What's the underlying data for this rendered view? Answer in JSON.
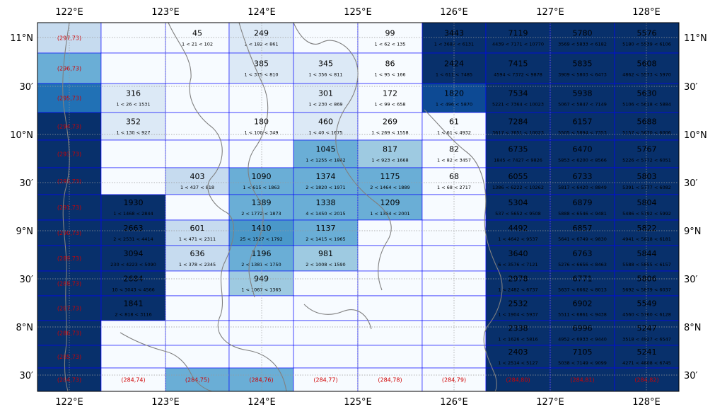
{
  "map": {
    "lon_ticks": [
      "122°E",
      "123°E",
      "124°E",
      "125°E",
      "126°E",
      "127°E",
      "128°E"
    ],
    "lat_ticks": [
      "11°N",
      "30′",
      "10°N",
      "30′",
      "9°N",
      "30′",
      "8°N",
      "30′"
    ],
    "colors": {
      "very_light": "#f7fbff",
      "light": "#dce9f6",
      "light_mid": "#c6dbef",
      "mid_light": "#9ecae1",
      "mid": "#6aaed6",
      "mid_dark": "#4a98c9",
      "dark": "#2171b5",
      "very_dark": "#08306b",
      "navy_mid": "#0d4a94",
      "grid_line": "#0000ff",
      "coast": "#808080",
      "label_red": "#d00000"
    },
    "cols": [
      "122-122.33",
      "122.33-122.67",
      "122.67-123",
      "123-123.33",
      "123.33-123.67",
      "123.67-124",
      "124-124.33",
      "124.33-124.67",
      "124.67-125",
      "125-125.33"
    ],
    "cells": [
      {
        "row": 0,
        "col": 0,
        "shade": "light_mid",
        "label": "(297,73)"
      },
      {
        "row": 0,
        "col": 1,
        "shade": "very_light"
      },
      {
        "row": 0,
        "col": 2,
        "shade": "very_light",
        "value": "45",
        "range": "1 < 21 < 102"
      },
      {
        "row": 0,
        "col": 3,
        "shade": "light",
        "value": "249",
        "range": "1 < 182 < 861"
      },
      {
        "row": 0,
        "col": 4,
        "shade": "very_light"
      },
      {
        "row": 0,
        "col": 5,
        "shade": "very_light",
        "value": "99",
        "range": "1 < 62 < 135"
      },
      {
        "row": 0,
        "col": 6,
        "shade": "very_dark",
        "value": "3443",
        "range": "1 < 3682 < 6131"
      },
      {
        "row": 0,
        "col": 7,
        "shade": "very_dark",
        "value": "7119",
        "range": "4439 < 7171 < 10770"
      },
      {
        "row": 0,
        "col": 8,
        "shade": "very_dark",
        "value": "5780",
        "range": "3569 < 5833 < 6182"
      },
      {
        "row": 0,
        "col": 9,
        "shade": "very_dark",
        "value": "5576",
        "range": "5180 < 5539 < 6106"
      },
      {
        "row": 1,
        "col": 0,
        "shade": "mid",
        "label": "(296,73)"
      },
      {
        "row": 1,
        "col": 1,
        "shade": "very_light"
      },
      {
        "row": 1,
        "col": 2,
        "shade": "very_light"
      },
      {
        "row": 1,
        "col": 3,
        "shade": "light",
        "value": "385",
        "range": "1 < 375 < 810"
      },
      {
        "row": 1,
        "col": 4,
        "shade": "light",
        "value": "345",
        "range": "1 < 356 < 811"
      },
      {
        "row": 1,
        "col": 5,
        "shade": "very_light",
        "value": "86",
        "range": "1 < 95 < 166"
      },
      {
        "row": 1,
        "col": 6,
        "shade": "very_dark",
        "value": "2424",
        "range": "1 < 611 < 7485"
      },
      {
        "row": 1,
        "col": 7,
        "shade": "very_dark",
        "value": "7415",
        "range": "4594 < 7372 < 9878"
      },
      {
        "row": 1,
        "col": 8,
        "shade": "very_dark",
        "value": "5835",
        "range": "3909 < 5803 < 6473"
      },
      {
        "row": 1,
        "col": 9,
        "shade": "very_dark",
        "value": "5608",
        "range": "4862 < 5573 < 5970"
      },
      {
        "row": 2,
        "col": 0,
        "shade": "dark",
        "label": "(295,73)"
      },
      {
        "row": 2,
        "col": 1,
        "shade": "light",
        "value": "316",
        "range": "1 < 26 < 1531"
      },
      {
        "row": 2,
        "col": 2,
        "shade": "very_light"
      },
      {
        "row": 2,
        "col": 3,
        "shade": "very_light"
      },
      {
        "row": 2,
        "col": 4,
        "shade": "light",
        "value": "301",
        "range": "1 < 230 < 869"
      },
      {
        "row": 2,
        "col": 5,
        "shade": "very_light",
        "value": "172",
        "range": "1 < 99 < 658"
      },
      {
        "row": 2,
        "col": 6,
        "shade": "navy_mid",
        "value": "1820",
        "range": "1 < 496 < 5870"
      },
      {
        "row": 2,
        "col": 7,
        "shade": "very_dark",
        "value": "7534",
        "range": "5221 < 7364 < 10023"
      },
      {
        "row": 2,
        "col": 8,
        "shade": "very_dark",
        "value": "5938",
        "range": "5067 < 5847 < 7149"
      },
      {
        "row": 2,
        "col": 9,
        "shade": "very_dark",
        "value": "5630",
        "range": "5106 < 5618 < 5884"
      },
      {
        "row": 3,
        "col": 0,
        "shade": "very_dark",
        "label": "(294,73)"
      },
      {
        "row": 3,
        "col": 1,
        "shade": "light",
        "value": "352",
        "range": "1 < 130 < 927"
      },
      {
        "row": 3,
        "col": 2,
        "shade": "very_light"
      },
      {
        "row": 3,
        "col": 3,
        "shade": "very_light",
        "value": "180",
        "range": "1 < 100 < 349"
      },
      {
        "row": 3,
        "col": 4,
        "shade": "light",
        "value": "460",
        "range": "1 < 40 < 1675"
      },
      {
        "row": 3,
        "col": 5,
        "shade": "very_light",
        "value": "269",
        "range": "1 < 269 < 1558"
      },
      {
        "row": 3,
        "col": 6,
        "shade": "very_light",
        "value": "61",
        "range": "1 < 61 < 4932"
      },
      {
        "row": 3,
        "col": 7,
        "shade": "very_dark",
        "value": "7284",
        "range": "3617 < 7651 < 10023"
      },
      {
        "row": 3,
        "col": 8,
        "shade": "very_dark",
        "value": "6157",
        "range": "5505 < 5894 < 7353"
      },
      {
        "row": 3,
        "col": 9,
        "shade": "very_dark",
        "value": "5688",
        "range": "5157 < 5670 < 6006"
      },
      {
        "row": 4,
        "col": 0,
        "shade": "very_dark",
        "label": "(293,73)"
      },
      {
        "row": 4,
        "col": 1,
        "shade": "very_light"
      },
      {
        "row": 4,
        "col": 2,
        "shade": "very_light"
      },
      {
        "row": 4,
        "col": 3,
        "shade": "very_light"
      },
      {
        "row": 4,
        "col": 4,
        "shade": "mid",
        "value": "1045",
        "range": "1 < 1255 < 1862"
      },
      {
        "row": 4,
        "col": 5,
        "shade": "mid_light",
        "value": "817",
        "range": "1 < 923 < 1668"
      },
      {
        "row": 4,
        "col": 6,
        "shade": "very_light",
        "value": "82",
        "range": "1 < 82 < 3457"
      },
      {
        "row": 4,
        "col": 7,
        "shade": "very_dark",
        "value": "6735",
        "range": "1845 < 7427 < 9826"
      },
      {
        "row": 4,
        "col": 8,
        "shade": "very_dark",
        "value": "6470",
        "range": "5853 < 6200 < 8566"
      },
      {
        "row": 4,
        "col": 9,
        "shade": "very_dark",
        "value": "5767",
        "range": "5226 < 5772 < 6051"
      },
      {
        "row": 5,
        "col": 0,
        "shade": "very_dark",
        "label": "(292,73)"
      },
      {
        "row": 5,
        "col": 1,
        "shade": "very_light"
      },
      {
        "row": 5,
        "col": 2,
        "shade": "light_mid",
        "value": "403",
        "range": "1 < 437 < 818"
      },
      {
        "row": 5,
        "col": 3,
        "shade": "mid",
        "value": "1090",
        "range": "1 < 615 < 1863"
      },
      {
        "row": 5,
        "col": 4,
        "shade": "mid",
        "value": "1374",
        "range": "2 < 1820 < 1971"
      },
      {
        "row": 5,
        "col": 5,
        "shade": "mid",
        "value": "1175",
        "range": "2 < 1464 < 1889"
      },
      {
        "row": 5,
        "col": 6,
        "shade": "very_light",
        "value": "68",
        "range": "1 < 68 < 2717"
      },
      {
        "row": 5,
        "col": 7,
        "shade": "very_dark",
        "value": "6055",
        "range": "1386 < 6222 < 10262"
      },
      {
        "row": 5,
        "col": 8,
        "shade": "very_dark",
        "value": "6733",
        "range": "5817 < 6420 < 8849"
      },
      {
        "row": 5,
        "col": 9,
        "shade": "very_dark",
        "value": "5803",
        "range": "5391 < 5777 < 6082"
      },
      {
        "row": 6,
        "col": 0,
        "shade": "very_dark",
        "label": "(291,73)"
      },
      {
        "row": 6,
        "col": 1,
        "shade": "very_dark",
        "value": "1930",
        "range": "1 < 1468 < 2844"
      },
      {
        "row": 6,
        "col": 2,
        "shade": "very_light"
      },
      {
        "row": 6,
        "col": 3,
        "shade": "mid",
        "value": "1389",
        "range": "2 < 1772 < 1873"
      },
      {
        "row": 6,
        "col": 4,
        "shade": "mid",
        "value": "1338",
        "range": "4 < 1450 < 2015"
      },
      {
        "row": 6,
        "col": 5,
        "shade": "mid",
        "value": "1209",
        "range": "1 < 1364 < 2001"
      },
      {
        "row": 6,
        "col": 6,
        "shade": "very_light"
      },
      {
        "row": 6,
        "col": 7,
        "shade": "very_dark",
        "value": "5304",
        "range": "537 < 5652 < 9508"
      },
      {
        "row": 6,
        "col": 8,
        "shade": "very_dark",
        "value": "6879",
        "range": "5888 < 6546 < 9481"
      },
      {
        "row": 6,
        "col": 9,
        "shade": "very_dark",
        "value": "5804",
        "range": "5486 < 5792 < 5992"
      },
      {
        "row": 7,
        "col": 0,
        "shade": "very_dark",
        "label": "(290,73)"
      },
      {
        "row": 7,
        "col": 1,
        "shade": "very_dark",
        "value": "2663",
        "range": "2 < 2531 < 4414"
      },
      {
        "row": 7,
        "col": 2,
        "shade": "light_mid",
        "value": "601",
        "range": "1 < 471 < 2311"
      },
      {
        "row": 7,
        "col": 3,
        "shade": "mid_dark",
        "value": "1410",
        "range": "25 < 1527 < 1792"
      },
      {
        "row": 7,
        "col": 4,
        "shade": "mid",
        "value": "1137",
        "range": "2 < 1415 < 1965"
      },
      {
        "row": 7,
        "col": 5,
        "shade": "very_light"
      },
      {
        "row": 7,
        "col": 6,
        "shade": "very_light"
      },
      {
        "row": 7,
        "col": 7,
        "shade": "very_dark",
        "value": "4492",
        "range": "1 < 4642 < 9537"
      },
      {
        "row": 7,
        "col": 8,
        "shade": "very_dark",
        "value": "6857",
        "range": "5641 < 6749 < 9830"
      },
      {
        "row": 7,
        "col": 9,
        "shade": "very_dark",
        "value": "5822",
        "range": "4941 < 5818 < 6181"
      },
      {
        "row": 8,
        "col": 0,
        "shade": "very_dark",
        "label": "(289,73)"
      },
      {
        "row": 8,
        "col": 1,
        "shade": "very_dark",
        "value": "3094",
        "range": "230 < 4223 < 5090"
      },
      {
        "row": 8,
        "col": 2,
        "shade": "light_mid",
        "value": "636",
        "range": "1 < 378 < 2345"
      },
      {
        "row": 8,
        "col": 3,
        "shade": "mid",
        "value": "1196",
        "range": "2 < 1381 < 1750"
      },
      {
        "row": 8,
        "col": 4,
        "shade": "mid_light",
        "value": "981",
        "range": "2 < 1008 < 1590"
      },
      {
        "row": 8,
        "col": 5,
        "shade": "very_light"
      },
      {
        "row": 8,
        "col": 6,
        "shade": "very_light"
      },
      {
        "row": 8,
        "col": 7,
        "shade": "very_dark",
        "value": "3640",
        "range": "6 < 3576 < 7121"
      },
      {
        "row": 8,
        "col": 8,
        "shade": "very_dark",
        "value": "6763",
        "range": "5276 < 6656 < 8463"
      },
      {
        "row": 8,
        "col": 9,
        "shade": "very_dark",
        "value": "5844",
        "range": "5588 < 5855 < 6157"
      },
      {
        "row": 9,
        "col": 0,
        "shade": "very_dark",
        "label": "(288,73)"
      },
      {
        "row": 9,
        "col": 1,
        "shade": "very_dark",
        "value": "2684",
        "range": "10 < 3043 < 4566"
      },
      {
        "row": 9,
        "col": 2,
        "shade": "very_light"
      },
      {
        "row": 9,
        "col": 3,
        "shade": "mid_light",
        "value": "949",
        "range": "1 < 1067 < 1365"
      },
      {
        "row": 9,
        "col": 4,
        "shade": "very_light"
      },
      {
        "row": 9,
        "col": 5,
        "shade": "very_light"
      },
      {
        "row": 9,
        "col": 6,
        "shade": "very_light"
      },
      {
        "row": 9,
        "col": 7,
        "shade": "very_dark",
        "value": "2978",
        "range": "1 < 2482 < 6737"
      },
      {
        "row": 9,
        "col": 8,
        "shade": "very_dark",
        "value": "6771",
        "range": "5637 < 6662 < 8013"
      },
      {
        "row": 9,
        "col": 9,
        "shade": "very_dark",
        "value": "5806",
        "range": "5692 < 5879 < 6037"
      },
      {
        "row": 10,
        "col": 0,
        "shade": "very_dark",
        "label": "(287,73)"
      },
      {
        "row": 10,
        "col": 1,
        "shade": "very_dark",
        "value": "1841",
        "range": "2 < 818 < 3116"
      },
      {
        "row": 10,
        "col": 2,
        "shade": "very_light"
      },
      {
        "row": 10,
        "col": 3,
        "shade": "very_light"
      },
      {
        "row": 10,
        "col": 4,
        "shade": "very_light"
      },
      {
        "row": 10,
        "col": 5,
        "shade": "very_light"
      },
      {
        "row": 10,
        "col": 6,
        "shade": "very_light"
      },
      {
        "row": 10,
        "col": 7,
        "shade": "very_dark",
        "value": "2532",
        "range": "1 < 1904 < 5937"
      },
      {
        "row": 10,
        "col": 8,
        "shade": "very_dark",
        "value": "6902",
        "range": "5511 < 6861 < 9438"
      },
      {
        "row": 10,
        "col": 9,
        "shade": "very_dark",
        "value": "5549",
        "range": "4560 < 5760 < 6128"
      },
      {
        "row": 11,
        "col": 0,
        "shade": "very_dark",
        "label": "(286,73)"
      },
      {
        "row": 11,
        "col": 1,
        "shade": "very_light"
      },
      {
        "row": 11,
        "col": 2,
        "shade": "very_light"
      },
      {
        "row": 11,
        "col": 3,
        "shade": "very_light"
      },
      {
        "row": 11,
        "col": 4,
        "shade": "very_light"
      },
      {
        "row": 11,
        "col": 5,
        "shade": "very_light"
      },
      {
        "row": 11,
        "col": 6,
        "shade": "very_light"
      },
      {
        "row": 11,
        "col": 7,
        "shade": "very_dark",
        "value": "2338",
        "range": "1 < 1626 < 5816"
      },
      {
        "row": 11,
        "col": 8,
        "shade": "very_dark",
        "value": "6996",
        "range": "4952 < 6933 < 9440"
      },
      {
        "row": 11,
        "col": 9,
        "shade": "very_dark",
        "value": "5247",
        "range": "3518 < 4927 < 6547"
      },
      {
        "row": 12,
        "col": 0,
        "shade": "very_dark",
        "label": "(285,73)"
      },
      {
        "row": 12,
        "col": 1,
        "shade": "very_light"
      },
      {
        "row": 12,
        "col": 2,
        "shade": "very_light"
      },
      {
        "row": 12,
        "col": 3,
        "shade": "very_light"
      },
      {
        "row": 12,
        "col": 4,
        "shade": "very_light"
      },
      {
        "row": 12,
        "col": 5,
        "shade": "very_light"
      },
      {
        "row": 12,
        "col": 6,
        "shade": "very_light"
      },
      {
        "row": 12,
        "col": 7,
        "shade": "very_dark",
        "value": "2403",
        "range": "1 < 2514 < 5127"
      },
      {
        "row": 12,
        "col": 8,
        "shade": "very_dark",
        "value": "7105",
        "range": "5038 < 7149 < 9099"
      },
      {
        "row": 12,
        "col": 9,
        "shade": "very_dark",
        "value": "5241",
        "range": "4271 < 4808 < 6745"
      },
      {
        "row": 13,
        "col": 0,
        "shade": "very_dark",
        "label": "(284,73)"
      },
      {
        "row": 13,
        "col": 1,
        "shade": "very_light",
        "label": "(284,74)"
      },
      {
        "row": 13,
        "col": 2,
        "shade": "mid",
        "label": "(284,75)"
      },
      {
        "row": 13,
        "col": 3,
        "shade": "mid",
        "label": "(284,76)"
      },
      {
        "row": 13,
        "col": 4,
        "shade": "very_light",
        "label": "(284,77)"
      },
      {
        "row": 13,
        "col": 5,
        "shade": "very_light",
        "label": "(284,78)"
      },
      {
        "row": 13,
        "col": 6,
        "shade": "very_light",
        "label": "(284,79)"
      },
      {
        "row": 13,
        "col": 7,
        "shade": "very_dark",
        "label": "(284,80)"
      },
      {
        "row": 13,
        "col": 8,
        "shade": "very_dark",
        "label": "(284,81)"
      },
      {
        "row": 13,
        "col": 9,
        "shade": "very_dark",
        "label": "(284,82)"
      }
    ]
  }
}
